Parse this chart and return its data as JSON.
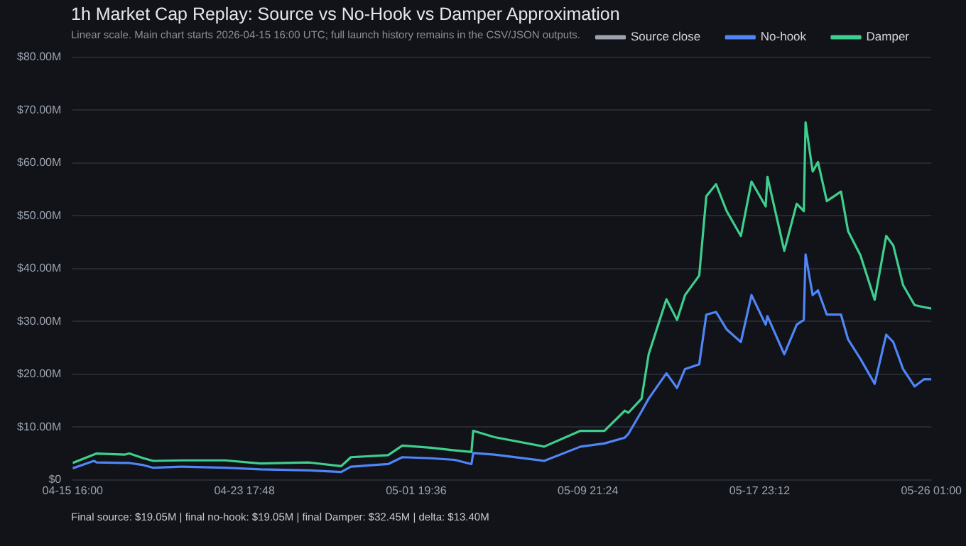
{
  "chart_data": {
    "type": "line",
    "title": "1h Market Cap Replay: Source vs No-Hook vs Damper Approximation",
    "subtitle": "Linear scale. Main chart starts 2026-04-15 16:00 UTC; full launch history remains in the CSV/JSON outputs.",
    "annotations": [
      "Final source: $19.05M | final no-hook: $19.05M | final Damper: $32.45M | delta: $13.40M"
    ],
    "x": [
      "2026-04-15T16:00",
      "2026-04-16T16:00",
      "2026-04-16T19:00",
      "2026-04-18T03:00",
      "2026-04-18T08:00",
      "2026-04-19T00:00",
      "2026-04-19T11:00",
      "2026-04-20T19:00",
      "2026-04-22T20:00",
      "2026-04-24T12:00",
      "2026-04-26T19:00",
      "2026-04-28T07:00",
      "2026-04-28T18:00",
      "2026-04-30T12:00",
      "2026-05-01T04:00",
      "2026-05-02T12:00",
      "2026-05-03T15:00",
      "2026-05-04T10:00",
      "2026-05-04T12:00",
      "2026-05-05T12:00",
      "2026-05-07T20:00",
      "2026-05-09T13:00",
      "2026-05-10T16:00",
      "2026-05-11T15:00",
      "2026-05-11T19:00",
      "2026-05-12T10:00",
      "2026-05-12T18:00",
      "2026-05-13T14:00",
      "2026-05-14T02:00",
      "2026-05-14T11:00",
      "2026-05-15T03:00",
      "2026-05-15T11:00",
      "2026-05-15T22:00",
      "2026-05-16T10:00",
      "2026-05-17T02:00",
      "2026-05-17T14:00",
      "2026-05-18T06:00",
      "2026-05-18T08:00",
      "2026-05-19T03:00",
      "2026-05-19T17:00",
      "2026-05-20T01:00",
      "2026-05-20T03:00",
      "2026-05-20T11:00",
      "2026-05-20T17:00",
      "2026-05-21T03:00",
      "2026-05-21T19:00",
      "2026-05-22T03:00",
      "2026-05-22T17:00",
      "2026-05-23T09:00",
      "2026-05-23T22:00",
      "2026-05-24T06:00",
      "2026-05-24T17:00",
      "2026-05-25T06:00",
      "2026-05-25T17:00",
      "2026-05-26T01:00"
    ],
    "series": [
      {
        "name": "Source close",
        "color": "#9ca3af",
        "values": [
          null,
          null,
          null,
          null,
          null,
          null,
          null,
          null,
          null,
          null,
          null,
          null,
          null,
          null,
          null,
          null,
          null,
          null,
          null,
          null,
          null,
          null,
          null,
          null,
          null,
          null,
          null,
          null,
          null,
          null,
          null,
          null,
          null,
          null,
          null,
          null,
          null,
          null,
          null,
          null,
          null,
          null,
          null,
          null,
          null,
          null,
          null,
          null,
          null,
          null,
          null,
          null,
          null,
          null,
          null
        ]
      },
      {
        "name": "No-hook",
        "color": "#4f86f7",
        "values": [
          2.2,
          3.6,
          3.3,
          3.2,
          3.2,
          2.8,
          2.3,
          2.5,
          2.3,
          2.0,
          1.8,
          1.5,
          2.5,
          3.0,
          4.3,
          4.1,
          3.8,
          3.0,
          5.1,
          4.8,
          3.6,
          6.3,
          6.9,
          8.0,
          8.7,
          13.0,
          15.4,
          20.2,
          17.4,
          21.0,
          21.9,
          31.3,
          31.8,
          28.5,
          26.1,
          35.0,
          29.4,
          31.0,
          23.8,
          29.4,
          30.3,
          42.7,
          35.0,
          35.9,
          31.3,
          31.3,
          26.6,
          22.9,
          18.2,
          27.5,
          26.1,
          21.0,
          17.7,
          19.1,
          19.05
        ]
      },
      {
        "name": "Damper",
        "color": "#3ecf8e",
        "values": [
          3.2,
          4.8,
          5.0,
          4.8,
          5.0,
          4.1,
          3.6,
          3.7,
          3.7,
          3.1,
          3.3,
          2.6,
          4.3,
          4.7,
          6.5,
          6.1,
          5.6,
          5.3,
          9.3,
          8.1,
          6.3,
          9.3,
          9.3,
          13.1,
          12.7,
          15.4,
          23.8,
          34.2,
          30.3,
          35.0,
          38.7,
          53.7,
          56.0,
          50.9,
          46.2,
          56.5,
          51.8,
          57.4,
          43.4,
          52.3,
          50.9,
          67.7,
          58.4,
          60.2,
          52.8,
          54.6,
          47.1,
          42.5,
          34.1,
          46.2,
          44.4,
          36.9,
          33.1,
          32.7,
          32.45
        ]
      }
    ],
    "xlim": [
      "2026-04-15T16:00",
      "2026-05-26T01:00"
    ],
    "xticks": [
      {
        "value": "2026-04-15T16:00",
        "label": "04-15 16:00"
      },
      {
        "value": "2026-04-23T17:48",
        "label": "04-23 17:48"
      },
      {
        "value": "2026-05-01T19:36",
        "label": "05-01 19:36"
      },
      {
        "value": "2026-05-09T21:24",
        "label": "05-09 21:24"
      },
      {
        "value": "2026-05-17T23:12",
        "label": "05-17 23:12"
      },
      {
        "value": "2026-05-26T01:00",
        "label": "05-26 01:00"
      }
    ],
    "ylim": [
      0,
      80
    ],
    "yticks": [
      {
        "value": 0,
        "label": "$0"
      },
      {
        "value": 10,
        "label": "$10.00M"
      },
      {
        "value": 20,
        "label": "$20.00M"
      },
      {
        "value": 30,
        "label": "$30.00M"
      },
      {
        "value": 40,
        "label": "$40.00M"
      },
      {
        "value": 50,
        "label": "$50.00M"
      },
      {
        "value": 60,
        "label": "$60.00M"
      },
      {
        "value": 70,
        "label": "$70.00M"
      },
      {
        "value": 80,
        "label": "$80.00M"
      }
    ],
    "grid": "y",
    "legend": "top right",
    "marker": "none"
  }
}
